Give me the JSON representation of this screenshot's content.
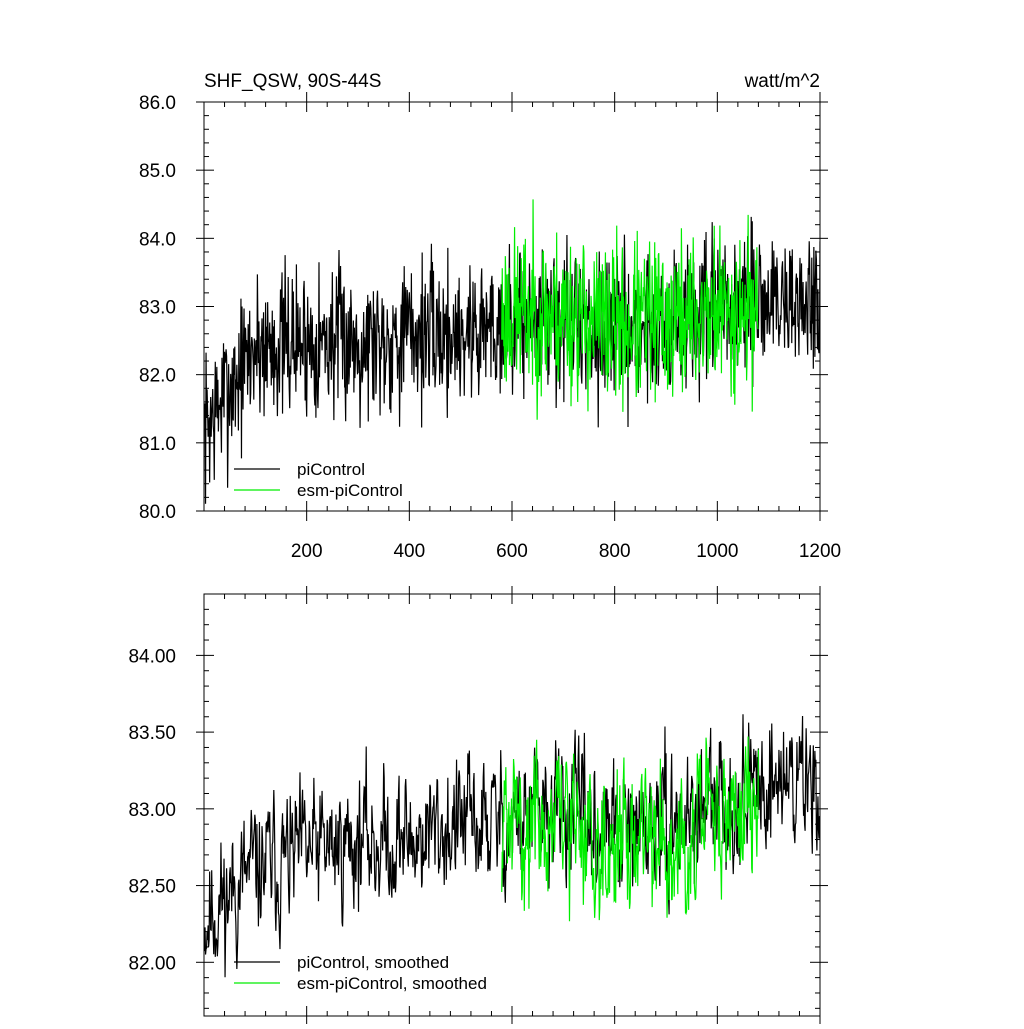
{
  "chart_data": [
    {
      "type": "line",
      "title": "SHF_QSW, 90S-44S",
      "units": "watt/m^2",
      "xlabel": "",
      "ylabel": "",
      "xlim": [
        0,
        1200
      ],
      "ylim": [
        80.0,
        86.0
      ],
      "xticks": [
        200,
        400,
        600,
        800,
        1000,
        1200
      ],
      "xtick_labels": [
        "200",
        "400",
        "600",
        "800",
        "1000",
        "1200"
      ],
      "yticks": [
        80.0,
        81.0,
        82.0,
        83.0,
        84.0,
        85.0,
        86.0
      ],
      "ytick_labels": [
        "80.0",
        "81.0",
        "82.0",
        "83.0",
        "84.0",
        "85.0",
        "86.0"
      ],
      "grid": false,
      "legend_position": "bottom-left",
      "series": [
        {
          "name": "piControl",
          "color": "#000000",
          "x_start": 1,
          "x_end": 1200,
          "anchors": [
            [
              1,
              81.2
            ],
            [
              100,
              82.4
            ],
            [
              200,
              82.5
            ],
            [
              300,
              82.5
            ],
            [
              400,
              82.6
            ],
            [
              500,
              82.6
            ],
            [
              600,
              82.8
            ],
            [
              700,
              82.8
            ],
            [
              800,
              82.7
            ],
            [
              900,
              82.7
            ],
            [
              1000,
              82.9
            ],
            [
              1100,
              83.1
            ],
            [
              1200,
              83.0
            ]
          ],
          "amplitude": 0.55,
          "noise_seed": 7
        },
        {
          "name": "esm-piControl",
          "color": "#00ee00",
          "x_start": 580,
          "x_end": 1080,
          "anchors": [
            [
              580,
              82.9
            ],
            [
              700,
              82.9
            ],
            [
              800,
              82.7
            ],
            [
              900,
              82.8
            ],
            [
              1000,
              82.9
            ],
            [
              1080,
              83.0
            ]
          ],
          "amplitude": 0.6,
          "noise_seed": 23
        }
      ]
    },
    {
      "type": "line",
      "title": "",
      "xlabel": "",
      "ylabel": "",
      "xlim": [
        0,
        1200
      ],
      "ylim": [
        81.65,
        84.4
      ],
      "yticks": [
        82.0,
        82.5,
        83.0,
        83.5,
        84.0
      ],
      "ytick_labels": [
        "82.00",
        "82.50",
        "83.00",
        "83.50",
        "84.00"
      ],
      "grid": false,
      "legend_position": "bottom-left",
      "series": [
        {
          "name": "piControl, smoothed",
          "color": "#000000",
          "x_start": 1,
          "x_end": 1200,
          "anchors": [
            [
              1,
              82.3
            ],
            [
              100,
              82.6
            ],
            [
              200,
              82.7
            ],
            [
              300,
              82.8
            ],
            [
              400,
              82.8
            ],
            [
              500,
              82.9
            ],
            [
              600,
              82.9
            ],
            [
              700,
              83.0
            ],
            [
              800,
              82.8
            ],
            [
              900,
              82.9
            ],
            [
              1000,
              83.0
            ],
            [
              1100,
              83.2
            ],
            [
              1200,
              83.2
            ]
          ],
          "amplitude": 0.3,
          "noise_seed": 11
        },
        {
          "name": "esm-piControl, smoothed",
          "color": "#00ee00",
          "x_start": 580,
          "x_end": 1080,
          "anchors": [
            [
              580,
              82.9
            ],
            [
              700,
              82.9
            ],
            [
              800,
              82.8
            ],
            [
              900,
              82.8
            ],
            [
              1000,
              82.9
            ],
            [
              1080,
              83.1
            ]
          ],
          "amplitude": 0.33,
          "noise_seed": 31
        }
      ]
    }
  ]
}
